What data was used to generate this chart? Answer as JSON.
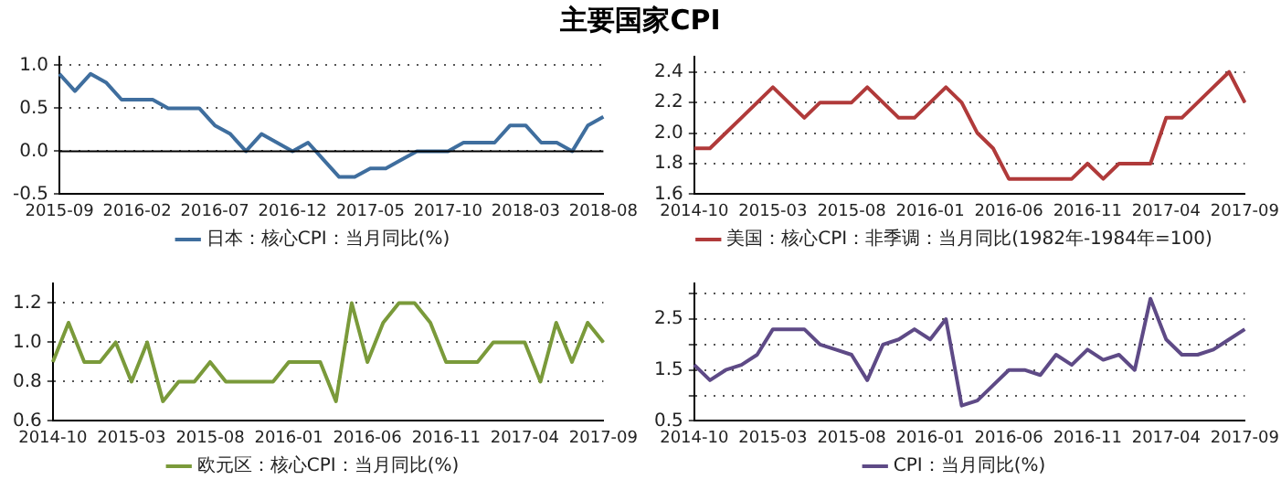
{
  "chart_data": [
    {
      "type": "line",
      "title": "主要国家CPI",
      "categories": [
        "2015-09",
        null,
        null,
        null,
        null,
        "2016-02",
        null,
        null,
        null,
        null,
        "2016-07",
        null,
        null,
        null,
        null,
        "2016-12",
        null,
        null,
        null,
        null,
        "2017-05",
        null,
        null,
        null,
        null,
        "2017-10",
        null,
        null,
        null,
        null,
        "2018-03",
        null,
        null,
        null,
        null,
        "2018-08"
      ],
      "series": [
        {
          "name": "日本：核心CPI：当月同比(%)",
          "color": "#3f6e9e",
          "values": [
            0.9,
            0.7,
            0.9,
            0.8,
            0.6,
            0.6,
            0.6,
            0.5,
            0.5,
            0.5,
            0.3,
            0.2,
            0.0,
            0.2,
            0.1,
            0.0,
            0.1,
            -0.1,
            -0.3,
            -0.3,
            -0.2,
            -0.2,
            -0.1,
            0.0,
            0.0,
            0.0,
            0.1,
            0.1,
            0.1,
            0.3,
            0.3,
            0.1,
            0.1,
            0.0,
            0.3,
            0.4
          ]
        }
      ],
      "ylim": [
        -0.5,
        1.1
      ],
      "yticks": [
        -0.5,
        {
          "value": 0,
          "label": "0.0"
        },
        0.5,
        {
          "value": 1,
          "label": "1.0"
        }
      ],
      "grid": "y",
      "legend": "bottom",
      "marker": "none",
      "line_style": "solid",
      "ref_lines": [
        {
          "axis": "y",
          "value": 0,
          "color": "#000000"
        }
      ]
    },
    {
      "type": "line",
      "categories": [
        "2014-10",
        null,
        null,
        null,
        null,
        "2015-03",
        null,
        null,
        null,
        null,
        "2015-08",
        null,
        null,
        null,
        null,
        "2016-01",
        null,
        null,
        null,
        null,
        "2016-06",
        null,
        null,
        null,
        null,
        "2016-11",
        null,
        null,
        null,
        null,
        "2017-04",
        null,
        null,
        null,
        null,
        "2017-09"
      ],
      "series": [
        {
          "name": "美国：核心CPI：非季调：当月同比(1982年-1984年=100)",
          "color": "#b03a3a",
          "values": [
            1.9,
            1.9,
            2.0,
            2.1,
            2.2,
            2.3,
            2.2,
            2.1,
            2.2,
            2.2,
            2.2,
            2.3,
            2.2,
            2.1,
            2.1,
            2.2,
            2.3,
            2.2,
            2.0,
            1.9,
            1.7,
            1.7,
            1.7,
            1.7,
            1.7,
            1.8,
            1.7,
            1.8,
            1.8,
            1.8,
            2.1,
            2.1,
            2.2,
            2.3,
            2.4,
            2.2
          ]
        }
      ],
      "ylim": [
        1.6,
        2.5
      ],
      "yticks": [
        1.6,
        1.8,
        {
          "value": 2,
          "label": "2.0"
        },
        2.2,
        2.4
      ],
      "grid": "y",
      "legend": "bottom",
      "marker": "none",
      "line_style": "solid"
    },
    {
      "type": "line",
      "categories": [
        "2014-10",
        null,
        null,
        null,
        null,
        "2015-03",
        null,
        null,
        null,
        null,
        "2015-08",
        null,
        null,
        null,
        null,
        "2016-01",
        null,
        null,
        null,
        null,
        "2016-06",
        null,
        null,
        null,
        null,
        "2016-11",
        null,
        null,
        null,
        null,
        "2017-04",
        null,
        null,
        null,
        null,
        "2017-09"
      ],
      "series": [
        {
          "name": "欧元区：核心CPI：当月同比(%)",
          "color": "#7a9a3a",
          "values": [
            0.9,
            1.1,
            0.9,
            0.9,
            1.0,
            0.8,
            1.0,
            0.7,
            0.8,
            0.8,
            0.9,
            0.8,
            0.8,
            0.8,
            0.8,
            0.9,
            0.9,
            0.9,
            0.7,
            1.2,
            0.9,
            1.1,
            1.2,
            1.2,
            1.1,
            0.9,
            0.9,
            0.9,
            1.0,
            1.0,
            1.0,
            0.8,
            1.1,
            0.9,
            1.1,
            1.0
          ]
        }
      ],
      "ylim": [
        0.6,
        1.3
      ],
      "yticks": [
        0.6,
        0.8,
        {
          "value": 1,
          "label": "1.0"
        },
        1.2
      ],
      "grid": "y",
      "legend": "bottom",
      "marker": "none",
      "line_style": "solid"
    },
    {
      "type": "line",
      "categories": [
        "2014-10",
        null,
        null,
        null,
        null,
        "2015-03",
        null,
        null,
        null,
        null,
        "2015-08",
        null,
        null,
        null,
        null,
        "2016-01",
        null,
        null,
        null,
        null,
        "2016-06",
        null,
        null,
        null,
        null,
        "2016-11",
        null,
        null,
        null,
        null,
        "2017-04",
        null,
        null,
        null,
        null,
        "2017-09"
      ],
      "series": [
        {
          "name": "CPI：当月同比(%)",
          "color": "#5e4a86",
          "values": [
            1.6,
            1.3,
            1.5,
            1.6,
            1.8,
            2.3,
            2.3,
            2.3,
            2.0,
            1.9,
            1.8,
            1.3,
            2.0,
            2.1,
            2.3,
            2.1,
            2.5,
            0.8,
            0.9,
            1.2,
            1.5,
            1.5,
            1.4,
            1.8,
            1.6,
            1.9,
            1.7,
            1.8,
            1.5,
            2.9,
            2.1,
            1.8,
            1.8,
            1.9,
            2.1,
            2.3
          ]
        }
      ],
      "ylim": [
        0.5,
        3.2
      ],
      "yticks": [
        0.5,
        {
          "value": 1.0,
          "label": null
        },
        1.5,
        {
          "value": 2.0,
          "label": null
        },
        2.5,
        {
          "value": 3.0,
          "label": null
        }
      ],
      "grid": "y",
      "legend": "bottom",
      "marker": "none",
      "line_style": "solid"
    }
  ]
}
